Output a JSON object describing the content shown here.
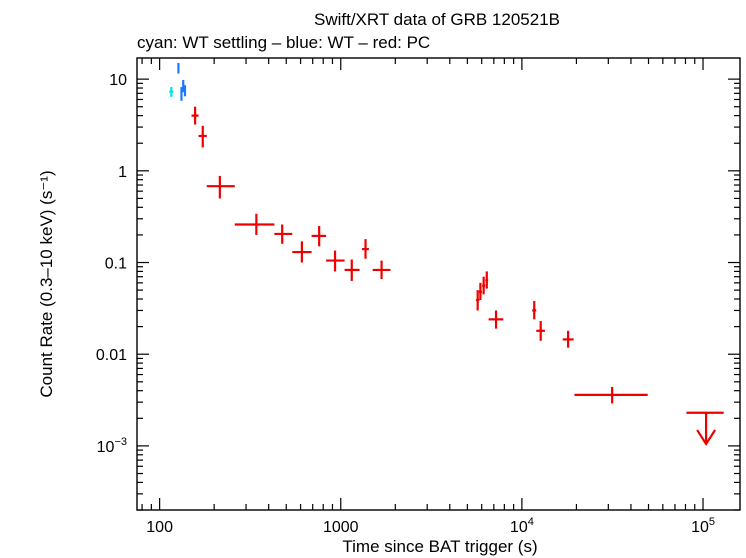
{
  "chart_data": {
    "type": "scatter",
    "title": "Swift/XRT data of GRB 120521B",
    "subtitle": "cyan: WT settling – blue: WT – red: PC",
    "xlabel": "Time since BAT trigger (s)",
    "ylabel": "Count Rate (0.3–10 keV) (s⁻¹)",
    "xscale": "log",
    "yscale": "log",
    "xlim": [
      75,
      160000
    ],
    "ylim": [
      0.0002,
      17
    ],
    "x_ticks": [
      {
        "value": 100,
        "base": "100",
        "exp": ""
      },
      {
        "value": 1000,
        "base": "1000",
        "exp": ""
      },
      {
        "value": 10000,
        "base": "10",
        "exp": "4"
      },
      {
        "value": 100000,
        "base": "10",
        "exp": "5"
      }
    ],
    "y_ticks": [
      {
        "value": 10,
        "base": "10",
        "exp": ""
      },
      {
        "value": 1,
        "base": "1",
        "exp": ""
      },
      {
        "value": 0.1,
        "base": "0.1",
        "exp": ""
      },
      {
        "value": 0.01,
        "base": "0.01",
        "exp": ""
      },
      {
        "value": 0.001,
        "base": "10",
        "exp": "−3"
      }
    ],
    "grid": false,
    "series": [
      {
        "color": "#00e5e5",
        "points": [
          {
            "x": 116,
            "xlo": 113,
            "xhi": 119,
            "y": 7.3,
            "ylo": 6.4,
            "yhi": 8.2
          }
        ]
      },
      {
        "color": "#1e78ff",
        "points": [
          {
            "x": 127,
            "xlo": 126,
            "xhi": 128,
            "y": 13.0,
            "ylo": 11.5,
            "yhi": 15.0
          },
          {
            "x": 132,
            "xlo": 131,
            "xhi": 133,
            "y": 7.0,
            "ylo": 5.8,
            "yhi": 8.2
          },
          {
            "x": 135,
            "xlo": 134,
            "xhi": 136,
            "y": 8.5,
            "ylo": 7.2,
            "yhi": 9.8
          },
          {
            "x": 138,
            "xlo": 137,
            "xhi": 139,
            "y": 7.5,
            "ylo": 6.5,
            "yhi": 8.6
          }
        ]
      },
      {
        "color": "#ee0000",
        "points": [
          {
            "x": 157,
            "xlo": 150,
            "xhi": 164,
            "y": 4.0,
            "ylo": 3.2,
            "yhi": 5.0
          },
          {
            "x": 173,
            "xlo": 164,
            "xhi": 182,
            "y": 2.4,
            "ylo": 1.8,
            "yhi": 3.1
          },
          {
            "x": 215,
            "xlo": 182,
            "xhi": 260,
            "y": 0.68,
            "ylo": 0.5,
            "yhi": 0.88
          },
          {
            "x": 342,
            "xlo": 260,
            "xhi": 430,
            "y": 0.26,
            "ylo": 0.2,
            "yhi": 0.34
          },
          {
            "x": 475,
            "xlo": 430,
            "xhi": 540,
            "y": 0.205,
            "ylo": 0.16,
            "yhi": 0.26
          },
          {
            "x": 610,
            "xlo": 540,
            "xhi": 690,
            "y": 0.13,
            "ylo": 0.1,
            "yhi": 0.17
          },
          {
            "x": 760,
            "xlo": 690,
            "xhi": 830,
            "y": 0.195,
            "ylo": 0.15,
            "yhi": 0.25
          },
          {
            "x": 930,
            "xlo": 830,
            "xhi": 1050,
            "y": 0.105,
            "ylo": 0.08,
            "yhi": 0.135
          },
          {
            "x": 1150,
            "xlo": 1050,
            "xhi": 1270,
            "y": 0.083,
            "ylo": 0.063,
            "yhi": 0.108
          },
          {
            "x": 1370,
            "xlo": 1310,
            "xhi": 1430,
            "y": 0.14,
            "ylo": 0.11,
            "yhi": 0.18
          },
          {
            "x": 1680,
            "xlo": 1500,
            "xhi": 1880,
            "y": 0.083,
            "ylo": 0.066,
            "yhi": 0.105
          },
          {
            "x": 5700,
            "xlo": 5580,
            "xhi": 5820,
            "y": 0.039,
            "ylo": 0.03,
            "yhi": 0.05
          },
          {
            "x": 5900,
            "xlo": 5780,
            "xhi": 6020,
            "y": 0.048,
            "ylo": 0.039,
            "yhi": 0.06
          },
          {
            "x": 6150,
            "xlo": 6030,
            "xhi": 6270,
            "y": 0.056,
            "ylo": 0.045,
            "yhi": 0.07
          },
          {
            "x": 6400,
            "xlo": 6280,
            "xhi": 6520,
            "y": 0.064,
            "ylo": 0.052,
            "yhi": 0.08
          },
          {
            "x": 7200,
            "xlo": 6550,
            "xhi": 7900,
            "y": 0.024,
            "ylo": 0.019,
            "yhi": 0.03
          },
          {
            "x": 11700,
            "xlo": 11400,
            "xhi": 12000,
            "y": 0.03,
            "ylo": 0.024,
            "yhi": 0.038
          },
          {
            "x": 12700,
            "xlo": 12000,
            "xhi": 13400,
            "y": 0.018,
            "ylo": 0.014,
            "yhi": 0.023
          },
          {
            "x": 18000,
            "xlo": 16800,
            "xhi": 19300,
            "y": 0.0145,
            "ylo": 0.0118,
            "yhi": 0.018
          },
          {
            "x": 31500,
            "xlo": 19500,
            "xhi": 49500,
            "y": 0.0036,
            "ylo": 0.0029,
            "yhi": 0.0044
          }
        ]
      }
    ],
    "upper_limits": [
      {
        "color": "#ee0000",
        "x": 104000,
        "xlo": 81000,
        "xhi": 130000,
        "y": 0.0023,
        "arrow_to": 0.00105
      }
    ]
  }
}
